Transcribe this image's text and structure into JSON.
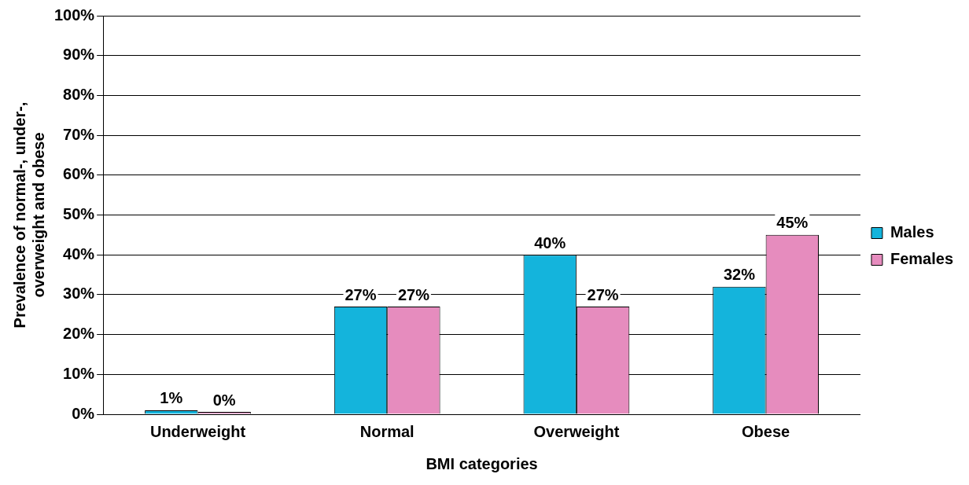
{
  "chart_data": {
    "type": "bar",
    "xlabel": "BMI categories",
    "ylabel": "Prevalence of normal-, under-,\noverweight and obese",
    "categories": [
      "Underweight",
      "Normal",
      "Overweight",
      "Obese"
    ],
    "series": [
      {
        "name": "Males",
        "color": "#14b4dc",
        "values": [
          1,
          27,
          40,
          32
        ],
        "value_labels": [
          "1%",
          "27%",
          "40%",
          "32%"
        ]
      },
      {
        "name": "Females",
        "color": "#e68cbe",
        "values": [
          0,
          27,
          27,
          45
        ],
        "value_labels": [
          "0%",
          "27%",
          "27%",
          "45%"
        ]
      }
    ],
    "ylim": [
      0,
      100
    ],
    "yticks": [
      {
        "value": 0,
        "label": "0%"
      },
      {
        "value": 10,
        "label": "10%"
      },
      {
        "value": 20,
        "label": "20%"
      },
      {
        "value": 30,
        "label": "30%"
      },
      {
        "value": 40,
        "label": "40%"
      },
      {
        "value": 50,
        "label": "50%"
      },
      {
        "value": 60,
        "label": "60%"
      },
      {
        "value": 70,
        "label": "70%"
      },
      {
        "value": 80,
        "label": "80%"
      },
      {
        "value": 90,
        "label": "90%"
      },
      {
        "value": 100,
        "label": "100%"
      }
    ],
    "grid": "y",
    "legend": "right"
  }
}
